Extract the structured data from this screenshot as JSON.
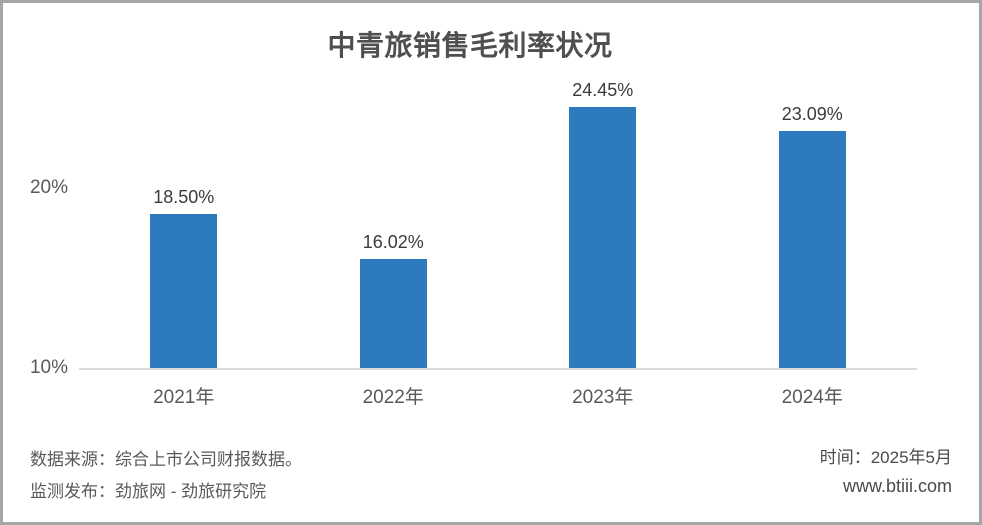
{
  "chart_data": {
    "type": "bar",
    "title": "中青旅销售毛利率状况",
    "categories": [
      "2021年",
      "2022年",
      "2023年",
      "2024年"
    ],
    "values": [
      18.5,
      16.02,
      24.45,
      23.09
    ],
    "value_labels": [
      "18.50%",
      "16.02%",
      "24.45%",
      "23.09%"
    ],
    "xlabel": "",
    "ylabel": "",
    "y_ticks": [
      {
        "label": "20%",
        "value": 20
      },
      {
        "label": "10%",
        "value": 10
      }
    ],
    "ylim": [
      10,
      27
    ],
    "grid": false,
    "legend_position": "none",
    "bar_color": "#2d7bbc"
  },
  "footer": {
    "source": "数据来源：综合上市公司财报数据。",
    "publisher": "监测发布：劲旅网 - 劲旅研究院",
    "time": "时间：2025年5月",
    "website": "www.btiii.com"
  },
  "colors": {
    "bar": "#2d7bbc",
    "axis_line": "#d9d9d9",
    "frame_border": "#a6a6a6",
    "title_text": "#4f4f4f",
    "value_label_text": "#3b3b3b",
    "axis_text": "#595959",
    "footer_text": "#595959"
  }
}
